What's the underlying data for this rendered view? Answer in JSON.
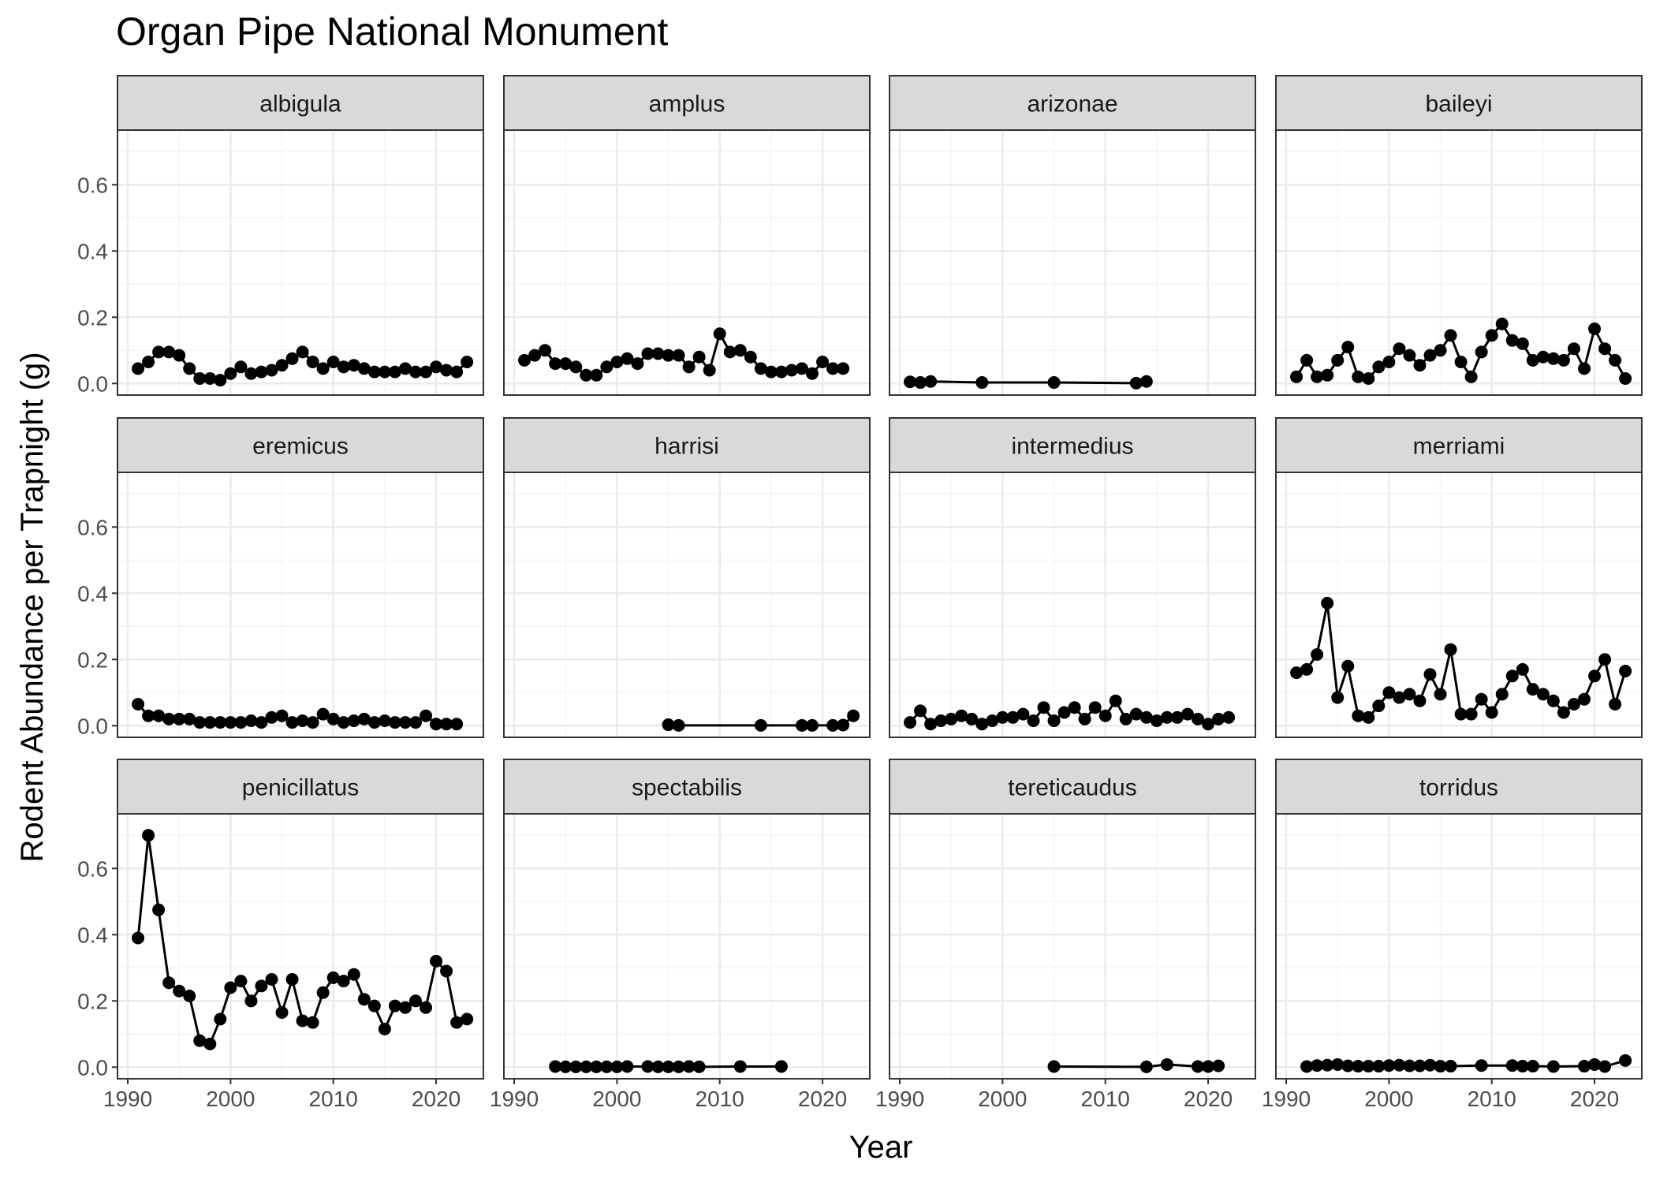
{
  "chart_data": {
    "type": "line",
    "title": "Organ Pipe National Monument",
    "xlabel": "Year",
    "ylabel": "Rodent Abundance per Trapnight (g)",
    "xlim": [
      1990,
      2023
    ],
    "ylim": [
      0,
      0.72
    ],
    "x_ticks": [
      "1990",
      "2000",
      "2010",
      "2020"
    ],
    "y_ticks": [
      "0.0",
      "0.2",
      "0.4",
      "0.6"
    ],
    "grid": true,
    "markers": true,
    "colors": {
      "line": "#000000",
      "strip_fill": "#d9d9d9",
      "panel_border": "#333333",
      "grid_major": "#ebebeb",
      "grid_minor": "#f5f5f5",
      "axis_text": "#4d4d4d"
    },
    "panels": [
      {
        "name": "albigula",
        "x": [
          1991,
          1992,
          1993,
          1994,
          1995,
          1996,
          1997,
          1998,
          1999,
          2000,
          2001,
          2002,
          2003,
          2004,
          2005,
          2006,
          2007,
          2008,
          2009,
          2010,
          2011,
          2012,
          2013,
          2014,
          2015,
          2016,
          2017,
          2018,
          2019,
          2020,
          2021,
          2022,
          2023
        ],
        "y": [
          0.045,
          0.065,
          0.095,
          0.095,
          0.085,
          0.045,
          0.015,
          0.015,
          0.01,
          0.03,
          0.05,
          0.03,
          0.035,
          0.04,
          0.055,
          0.075,
          0.095,
          0.065,
          0.045,
          0.065,
          0.05,
          0.055,
          0.045,
          0.035,
          0.035,
          0.035,
          0.045,
          0.035,
          0.035,
          0.05,
          0.04,
          0.035,
          0.065
        ]
      },
      {
        "name": "amplus",
        "x": [
          1991,
          1992,
          1993,
          1994,
          1995,
          1996,
          1997,
          1998,
          1999,
          2000,
          2001,
          2002,
          2003,
          2004,
          2005,
          2006,
          2007,
          2008,
          2009,
          2010,
          2011,
          2012,
          2013,
          2014,
          2015,
          2016,
          2017,
          2018,
          2019,
          2020,
          2021,
          2022
        ],
        "y": [
          0.07,
          0.085,
          0.1,
          0.06,
          0.06,
          0.05,
          0.025,
          0.025,
          0.05,
          0.065,
          0.075,
          0.06,
          0.09,
          0.09,
          0.085,
          0.085,
          0.05,
          0.08,
          0.04,
          0.15,
          0.095,
          0.1,
          0.08,
          0.045,
          0.035,
          0.035,
          0.04,
          0.045,
          0.03,
          0.065,
          0.045,
          0.045
        ]
      },
      {
        "name": "arizonae",
        "x": [
          1991,
          1992,
          1993,
          1998,
          2005,
          2013,
          2014
        ],
        "y": [
          0.005,
          0.003,
          0.006,
          0.003,
          0.003,
          0.001,
          0.006
        ]
      },
      {
        "name": "baileyi",
        "x": [
          1991,
          1992,
          1993,
          1994,
          1995,
          1996,
          1997,
          1998,
          1999,
          2000,
          2001,
          2002,
          2003,
          2004,
          2005,
          2006,
          2007,
          2008,
          2009,
          2010,
          2011,
          2012,
          2013,
          2014,
          2015,
          2016,
          2017,
          2018,
          2019,
          2020,
          2021,
          2022,
          2023
        ],
        "y": [
          0.02,
          0.07,
          0.02,
          0.025,
          0.07,
          0.11,
          0.02,
          0.015,
          0.05,
          0.065,
          0.105,
          0.085,
          0.055,
          0.085,
          0.1,
          0.145,
          0.065,
          0.02,
          0.095,
          0.145,
          0.18,
          0.13,
          0.12,
          0.07,
          0.08,
          0.075,
          0.07,
          0.105,
          0.045,
          0.165,
          0.105,
          0.07,
          0.015
        ]
      },
      {
        "name": "eremicus",
        "x": [
          1991,
          1992,
          1993,
          1994,
          1995,
          1996,
          1997,
          1998,
          1999,
          2000,
          2001,
          2002,
          2003,
          2004,
          2005,
          2006,
          2007,
          2008,
          2009,
          2010,
          2011,
          2012,
          2013,
          2014,
          2015,
          2016,
          2017,
          2018,
          2019,
          2020,
          2021,
          2022
        ],
        "y": [
          0.065,
          0.03,
          0.03,
          0.02,
          0.02,
          0.02,
          0.01,
          0.01,
          0.01,
          0.01,
          0.01,
          0.015,
          0.01,
          0.025,
          0.03,
          0.01,
          0.015,
          0.01,
          0.035,
          0.02,
          0.01,
          0.015,
          0.02,
          0.01,
          0.015,
          0.01,
          0.01,
          0.01,
          0.03,
          0.005,
          0.005,
          0.005
        ]
      },
      {
        "name": "harrisi",
        "x": [
          2005,
          2006,
          2014,
          2018,
          2019,
          2021,
          2022,
          2023
        ],
        "y": [
          0.003,
          0.001,
          0.001,
          0.001,
          0.001,
          0.001,
          0.002,
          0.03
        ]
      },
      {
        "name": "intermedius",
        "x": [
          1991,
          1992,
          1993,
          1994,
          1995,
          1996,
          1997,
          1998,
          1999,
          2000,
          2001,
          2002,
          2003,
          2004,
          2005,
          2006,
          2007,
          2008,
          2009,
          2010,
          2011,
          2012,
          2013,
          2014,
          2015,
          2016,
          2017,
          2018,
          2019,
          2020,
          2021,
          2022
        ],
        "y": [
          0.01,
          0.045,
          0.005,
          0.015,
          0.02,
          0.03,
          0.02,
          0.005,
          0.015,
          0.025,
          0.025,
          0.035,
          0.015,
          0.055,
          0.015,
          0.04,
          0.055,
          0.02,
          0.055,
          0.03,
          0.075,
          0.02,
          0.035,
          0.025,
          0.015,
          0.025,
          0.025,
          0.035,
          0.02,
          0.005,
          0.02,
          0.025
        ]
      },
      {
        "name": "merriami",
        "x": [
          1991,
          1992,
          1993,
          1994,
          1995,
          1996,
          1997,
          1998,
          1999,
          2000,
          2001,
          2002,
          2003,
          2004,
          2005,
          2006,
          2007,
          2008,
          2009,
          2010,
          2011,
          2012,
          2013,
          2014,
          2015,
          2016,
          2017,
          2018,
          2019,
          2020,
          2021,
          2022,
          2023
        ],
        "y": [
          0.16,
          0.17,
          0.215,
          0.37,
          0.085,
          0.18,
          0.03,
          0.025,
          0.06,
          0.1,
          0.085,
          0.095,
          0.075,
          0.155,
          0.095,
          0.23,
          0.035,
          0.035,
          0.08,
          0.04,
          0.095,
          0.15,
          0.17,
          0.11,
          0.095,
          0.075,
          0.04,
          0.065,
          0.08,
          0.15,
          0.2,
          0.065,
          0.165
        ]
      },
      {
        "name": "penicillatus",
        "x": [
          1991,
          1992,
          1993,
          1994,
          1995,
          1996,
          1997,
          1998,
          1999,
          2000,
          2001,
          2002,
          2003,
          2004,
          2005,
          2006,
          2007,
          2008,
          2009,
          2010,
          2011,
          2012,
          2013,
          2014,
          2015,
          2016,
          2017,
          2018,
          2019,
          2020,
          2021,
          2022,
          2023
        ],
        "y": [
          0.39,
          0.7,
          0.475,
          0.255,
          0.23,
          0.215,
          0.08,
          0.07,
          0.145,
          0.24,
          0.26,
          0.2,
          0.245,
          0.265,
          0.165,
          0.265,
          0.14,
          0.135,
          0.225,
          0.27,
          0.26,
          0.28,
          0.205,
          0.185,
          0.115,
          0.185,
          0.18,
          0.2,
          0.18,
          0.32,
          0.29,
          0.135,
          0.145
        ]
      },
      {
        "name": "spectabilis",
        "x": [
          1994,
          1995,
          1996,
          1997,
          1998,
          1999,
          2000,
          2001,
          2003,
          2004,
          2005,
          2006,
          2007,
          2008,
          2012,
          2016
        ],
        "y": [
          0.002,
          0.001,
          0.001,
          0.001,
          0.001,
          0.001,
          0.001,
          0.002,
          0.002,
          0.001,
          0.001,
          0.001,
          0.002,
          0.001,
          0.002,
          0.002
        ]
      },
      {
        "name": "tereticaudus",
        "x": [
          2005,
          2014,
          2016,
          2019,
          2020,
          2021
        ],
        "y": [
          0.002,
          0.001,
          0.008,
          0.002,
          0.002,
          0.004
        ]
      },
      {
        "name": "torridus",
        "x": [
          1992,
          1993,
          1994,
          1995,
          1996,
          1997,
          1998,
          1999,
          2000,
          2001,
          2002,
          2003,
          2004,
          2005,
          2006,
          2009,
          2012,
          2013,
          2014,
          2016,
          2019,
          2020,
          2021,
          2023
        ],
        "y": [
          0.002,
          0.005,
          0.006,
          0.008,
          0.004,
          0.003,
          0.003,
          0.003,
          0.005,
          0.006,
          0.004,
          0.004,
          0.006,
          0.003,
          0.003,
          0.005,
          0.005,
          0.003,
          0.003,
          0.002,
          0.003,
          0.008,
          0.002,
          0.02
        ]
      }
    ]
  }
}
